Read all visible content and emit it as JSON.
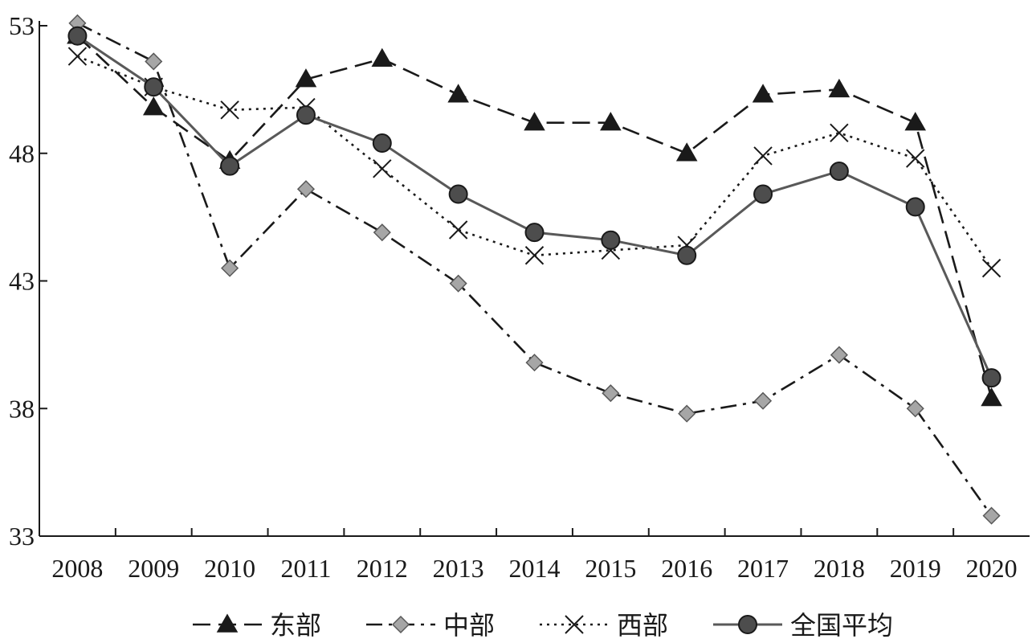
{
  "chart_data": {
    "type": "line",
    "title": "",
    "xlabel": "",
    "ylabel": "",
    "categories": [
      "2008",
      "2009",
      "2010",
      "2011",
      "2012",
      "2013",
      "2014",
      "2015",
      "2016",
      "2017",
      "2018",
      "2019",
      "2020"
    ],
    "ylim": [
      33,
      53
    ],
    "yticks": [
      "53",
      "48",
      "43",
      "38",
      "33"
    ],
    "grid": false,
    "legend_position": "bottom",
    "series": [
      {
        "name": "东部",
        "line_style": "dashed",
        "marker": "triangle",
        "color": "#1a1a1a",
        "marker_fill": "#1a1a1a",
        "values": [
          52.6,
          49.8,
          47.7,
          50.9,
          51.7,
          50.3,
          49.2,
          49.2,
          48.0,
          50.3,
          50.5,
          49.2,
          38.4
        ]
      },
      {
        "name": "中部",
        "line_style": "dash-dot",
        "marker": "diamond",
        "color": "#1a1a1a",
        "marker_fill": "#a6a6a6",
        "values": [
          53.1,
          51.6,
          43.5,
          46.6,
          44.9,
          42.9,
          39.8,
          38.6,
          37.8,
          38.3,
          40.1,
          38.0,
          33.8
        ]
      },
      {
        "name": "西部",
        "line_style": "dotted",
        "marker": "x",
        "color": "#1a1a1a",
        "marker_fill": "none",
        "values": [
          51.8,
          50.6,
          49.7,
          49.8,
          47.4,
          45.0,
          44.0,
          44.2,
          44.4,
          47.9,
          48.8,
          47.8,
          43.5
        ]
      },
      {
        "name": "全国平均",
        "line_style": "solid",
        "marker": "circle",
        "color": "#595959",
        "marker_fill": "#4d4d4d",
        "values": [
          52.6,
          50.6,
          47.5,
          49.5,
          48.4,
          46.4,
          44.9,
          44.6,
          44.0,
          46.4,
          47.3,
          45.9,
          39.2
        ]
      }
    ]
  }
}
